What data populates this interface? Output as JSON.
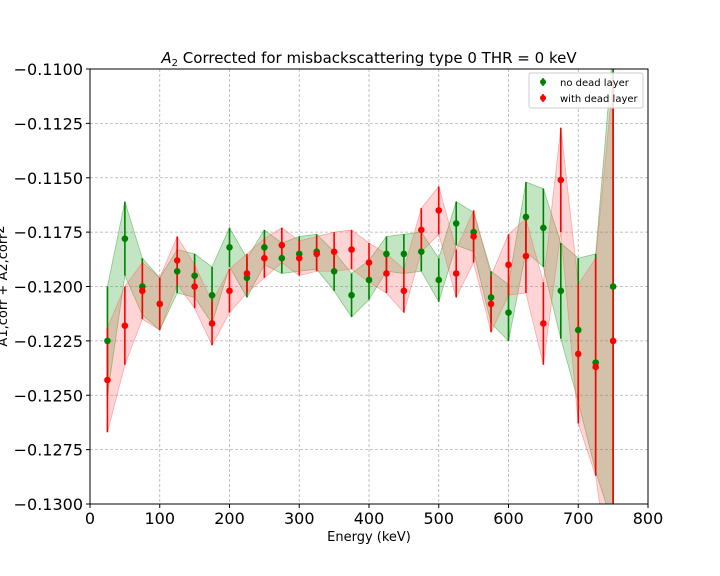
{
  "chart_data": {
    "type": "scatter",
    "title_italic": "A",
    "title_sub": "2",
    "title_rest": " Corrected for misbackscattering type 0 THR = 0 keV",
    "xlabel": "Energy (keV)",
    "ylabel_main": "A",
    "ylabel_rest": "1,corr + A2,corr",
    "ylabel_sup": "2",
    "xlim": [
      0,
      800
    ],
    "ylim": [
      -0.13,
      -0.11
    ],
    "x_ticks": [
      0,
      100,
      200,
      300,
      400,
      500,
      600,
      700,
      800
    ],
    "x_tick_labels": [
      "0",
      "100",
      "200",
      "300",
      "400",
      "500",
      "600",
      "700",
      "800"
    ],
    "y_ticks": [
      -0.13,
      -0.1275,
      -0.125,
      -0.1225,
      -0.12,
      -0.1175,
      -0.115,
      -0.1125,
      -0.11
    ],
    "y_tick_labels": [
      "−0.1300",
      "−0.1275",
      "−0.1250",
      "−0.1225",
      "−0.1200",
      "−0.1175",
      "−0.1150",
      "−0.1125",
      "−0.1100"
    ],
    "grid": true,
    "legend_position": "top-right",
    "series": [
      {
        "name": "no dead layer",
        "color": "#008000",
        "band_color": "#2ca02c",
        "x": [
          25,
          50,
          75,
          100,
          125,
          150,
          175,
          200,
          225,
          250,
          275,
          300,
          325,
          350,
          375,
          400,
          425,
          450,
          475,
          500,
          525,
          550,
          575,
          600,
          625,
          650,
          675,
          700,
          725,
          750
        ],
        "y": [
          -0.1225,
          -0.1178,
          -0.12,
          -0.1208,
          -0.1193,
          -0.1195,
          -0.1204,
          -0.1182,
          -0.1196,
          -0.1182,
          -0.1187,
          -0.1185,
          -0.1184,
          -0.1193,
          -0.1204,
          -0.1197,
          -0.1185,
          -0.1185,
          -0.1184,
          -0.1197,
          -0.1171,
          -0.1175,
          -0.1205,
          -0.1212,
          -0.1168,
          -0.1173,
          -0.1202,
          -0.122,
          -0.1235,
          -0.12
        ],
        "err": [
          0.0025,
          0.0017,
          0.0013,
          0.0012,
          0.001,
          0.001,
          0.0013,
          0.0009,
          0.0009,
          0.0008,
          0.0007,
          0.0008,
          0.0008,
          0.0009,
          0.001,
          0.0009,
          0.0008,
          0.0009,
          0.0009,
          0.001,
          0.001,
          0.0009,
          0.0012,
          0.0013,
          0.0016,
          0.0018,
          0.0022,
          0.0033,
          0.005,
          0.011
        ]
      },
      {
        "name": "with dead layer",
        "color": "#ff0000",
        "band_color": "#ff6666",
        "x": [
          25,
          50,
          75,
          100,
          125,
          150,
          175,
          200,
          225,
          250,
          275,
          300,
          325,
          350,
          375,
          400,
          425,
          450,
          475,
          500,
          525,
          550,
          575,
          600,
          625,
          650,
          675,
          700,
          725,
          750
        ],
        "y": [
          -0.1243,
          -0.1218,
          -0.1202,
          -0.1208,
          -0.1188,
          -0.12,
          -0.1217,
          -0.1202,
          -0.1194,
          -0.1187,
          -0.1181,
          -0.1187,
          -0.1185,
          -0.1184,
          -0.1183,
          -0.1189,
          -0.1194,
          -0.1202,
          -0.1174,
          -0.1165,
          -0.1194,
          -0.1177,
          -0.1208,
          -0.119,
          -0.1186,
          -0.1217,
          -0.1151,
          -0.1231,
          -0.1237,
          -0.1225
        ],
        "err": [
          0.0024,
          0.0018,
          0.0013,
          0.0012,
          0.0011,
          0.001,
          0.001,
          0.001,
          0.0009,
          0.0009,
          0.0008,
          0.0008,
          0.0008,
          0.0009,
          0.0009,
          0.0009,
          0.0009,
          0.001,
          0.001,
          0.0011,
          0.0011,
          0.0012,
          0.0013,
          0.0014,
          0.0017,
          0.0019,
          0.0024,
          0.0032,
          0.005,
          0.012
        ]
      }
    ]
  }
}
